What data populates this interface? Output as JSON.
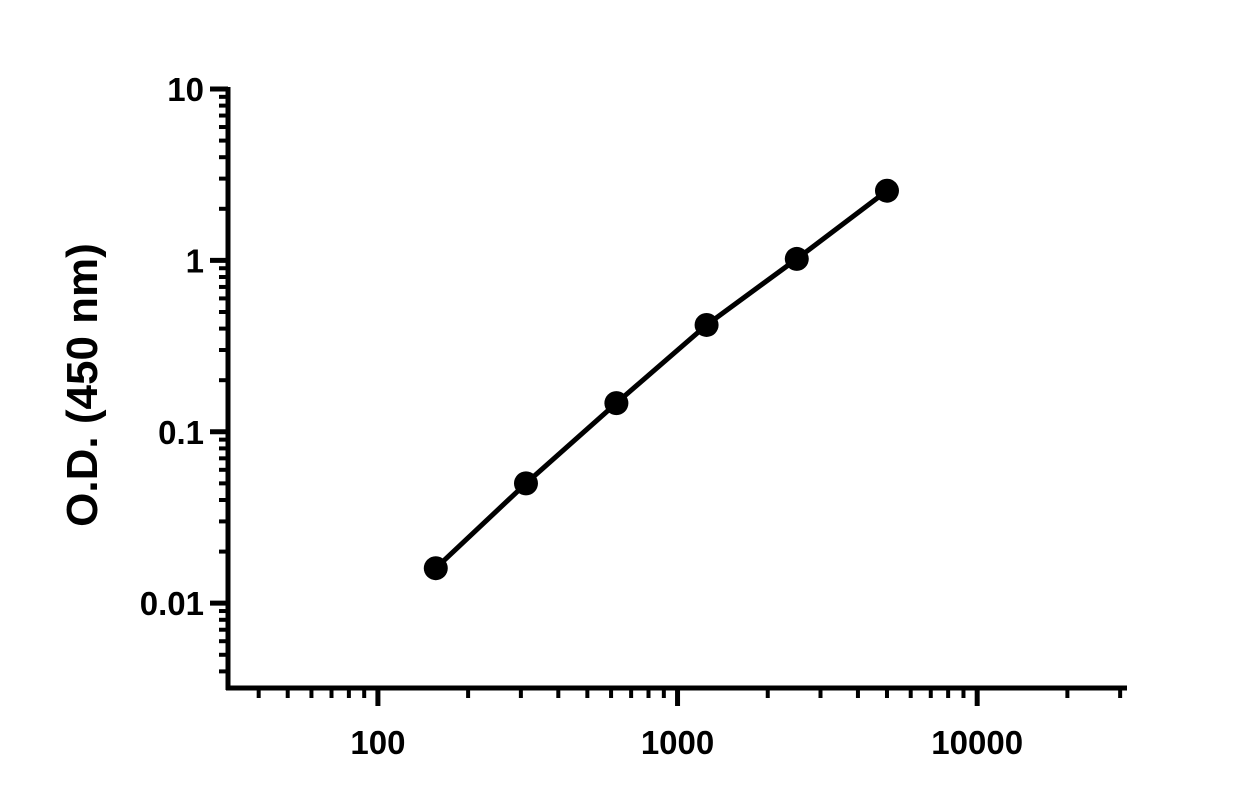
{
  "chart_data": {
    "type": "line",
    "title": "",
    "xlabel": "",
    "ylabel": "O.D. (450 nm)",
    "x_scale": "log",
    "y_scale": "log",
    "xlim": [
      31.6,
      31623
    ],
    "ylim": [
      0.0032,
      10
    ],
    "x_ticks": [
      {
        "value": 100,
        "label": "100"
      },
      {
        "value": 1000,
        "label": "1000"
      },
      {
        "value": 10000,
        "label": "10000"
      }
    ],
    "y_ticks": [
      {
        "value": 10,
        "label": "10"
      },
      {
        "value": 1,
        "label": "1"
      },
      {
        "value": 0.1,
        "label": "0.1"
      },
      {
        "value": 0.01,
        "label": "0.01"
      }
    ],
    "grid": false,
    "legend": "none",
    "series": [
      {
        "color": "#000000",
        "marker": "circle",
        "x": [
          156,
          312,
          625,
          1250,
          2500,
          5000
        ],
        "y": [
          0.016,
          0.05,
          0.147,
          0.42,
          1.02,
          2.55
        ]
      }
    ]
  }
}
